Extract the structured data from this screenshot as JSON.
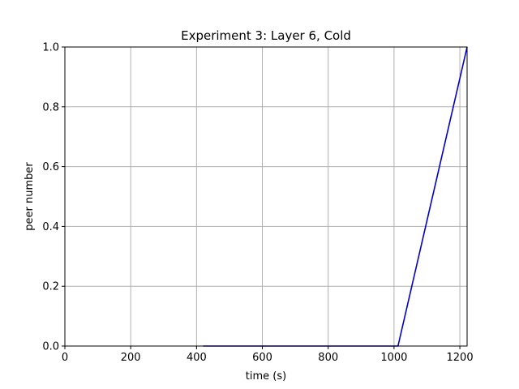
{
  "chart_data": {
    "type": "line",
    "title": "Experiment 3: Layer 6, Cold",
    "xlabel": "time (s)",
    "ylabel": "peer number",
    "xlim": [
      0,
      1222
    ],
    "ylim": [
      0,
      1.0
    ],
    "xticks": [
      0,
      200,
      400,
      600,
      800,
      1000,
      1200
    ],
    "xtick_labels": [
      "0",
      "200",
      "400",
      "600",
      "800",
      "1000",
      "1200"
    ],
    "yticks": [
      0.0,
      0.2,
      0.4,
      0.6,
      0.8,
      1.0
    ],
    "ytick_labels": [
      "0.0",
      "0.2",
      "0.4",
      "0.6",
      "0.8",
      "1.0"
    ],
    "grid": true,
    "series": [
      {
        "color": "#0000cc",
        "x": [
          420,
          1012,
          1222
        ],
        "y": [
          0,
          0,
          1.0
        ]
      }
    ]
  }
}
